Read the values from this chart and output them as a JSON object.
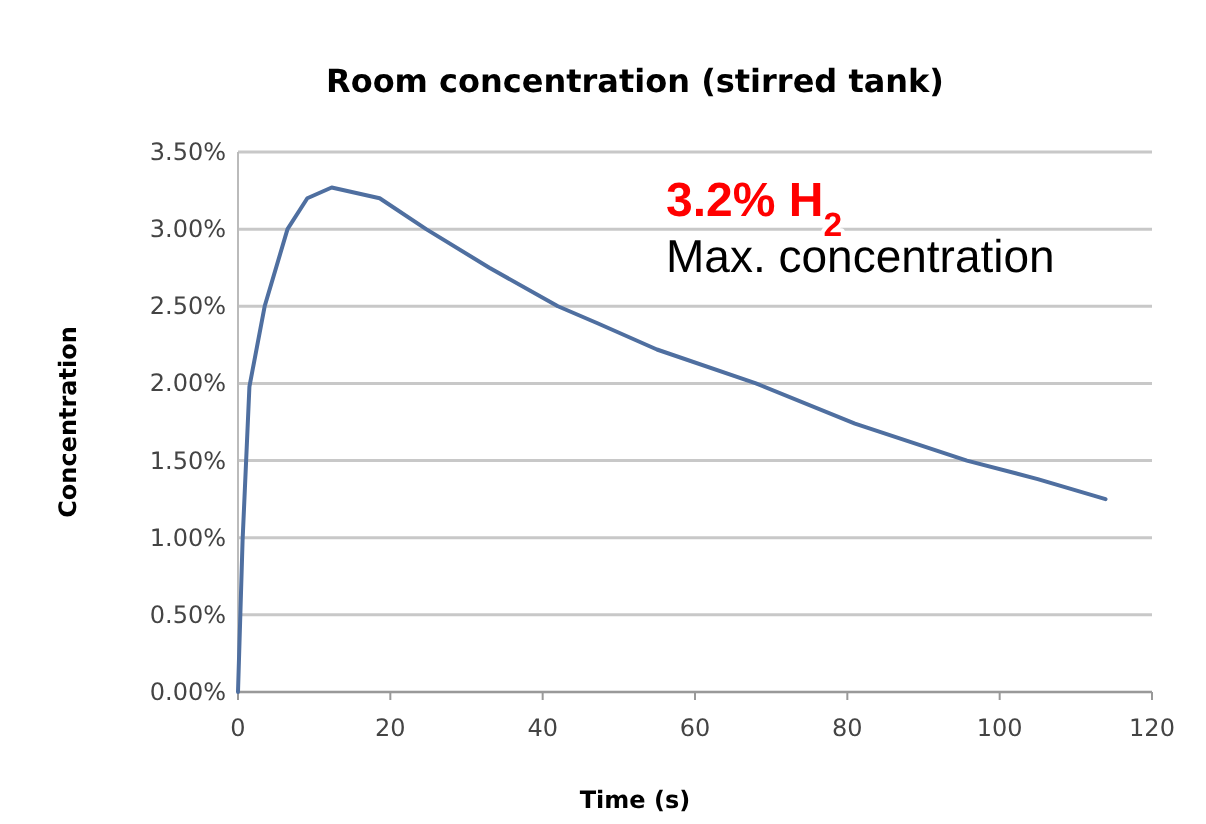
{
  "chart_data": {
    "type": "line",
    "title": "Room concentration (stirred tank)",
    "xlabel": "Time (s)",
    "ylabel": "Concentration",
    "annotations": [
      "3.2% H$_{2}$",
      "Max. concentration"
    ],
    "x": [
      0,
      0.6,
      1.5,
      3.5,
      6.5,
      9.1,
      12.3,
      18.6,
      24.7,
      33,
      42,
      47.2,
      55,
      68,
      81,
      95.7,
      105,
      113.9
    ],
    "series": [
      {
        "color": "#4f6fa0",
        "values": [
          0,
          0.98,
          1.98,
          2.5,
          3.0,
          3.2,
          3.27,
          3.2,
          3.0,
          2.75,
          2.5,
          2.39,
          2.22,
          2.0,
          1.74,
          1.5,
          1.38,
          1.25
        ]
      }
    ],
    "xlim": [
      0,
      120
    ],
    "xticks": [
      0,
      20,
      40,
      60,
      80,
      100,
      120
    ],
    "ylim": [
      0,
      3.5
    ],
    "yticks": [
      {
        "value": 0,
        "label": "0.00%"
      },
      {
        "value": 0.5,
        "label": "0.50%"
      },
      {
        "value": 1,
        "label": "1.00%"
      },
      {
        "value": 1.5,
        "label": "1.50%"
      },
      {
        "value": 2,
        "label": "2.00%"
      },
      {
        "value": 2.5,
        "label": "2.50%"
      },
      {
        "value": 3,
        "label": "3.00%"
      },
      {
        "value": 3.5,
        "label": "3.50%"
      }
    ],
    "grid": "y",
    "marker": "none",
    "line_style": "solid"
  }
}
